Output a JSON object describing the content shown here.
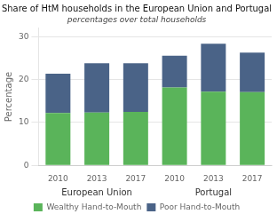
{
  "chart_data": {
    "type": "bar",
    "stacked": true,
    "title": "Share of HtM households in the European Union and Portugal",
    "subtitle": "percentages over total households",
    "y_label": "Percentage",
    "categories": [
      "2010",
      "2013",
      "2017",
      "2010",
      "2013",
      "2017"
    ],
    "category_groups": [
      "European Union",
      "European Union",
      "European Union",
      "Portugal",
      "Portugal",
      "Portugal"
    ],
    "series": [
      {
        "name": "Wealthy Hand-to-Mouth",
        "color": "#5ab45a",
        "values": [
          12.2,
          12.3,
          12.5,
          18.2,
          17.2,
          17.1
        ]
      },
      {
        "name": "Poor Hand-to-Mouth",
        "color": "#4a6387",
        "values": [
          9.2,
          11.5,
          11.3,
          7.4,
          11.2,
          9.2
        ]
      }
    ],
    "ylim": [
      0,
      32
    ],
    "yticks": [
      0,
      10,
      20,
      30
    ],
    "grid": true,
    "legend": "bottom"
  }
}
